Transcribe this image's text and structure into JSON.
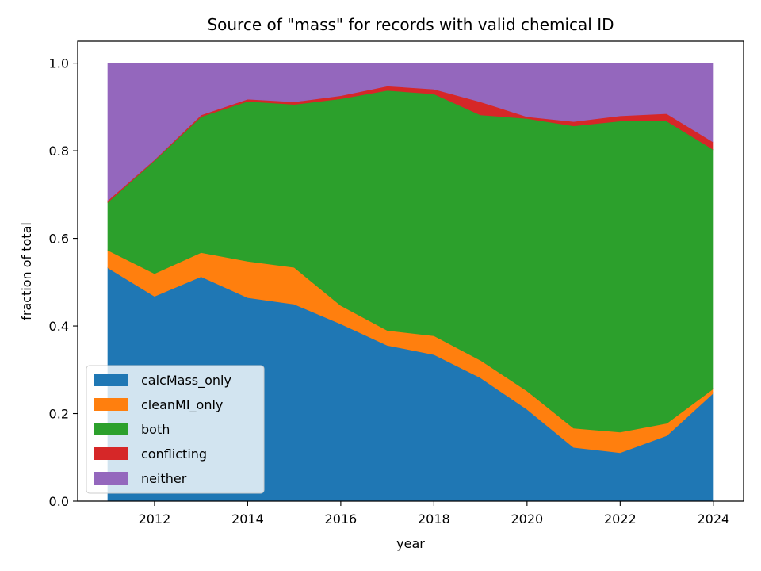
{
  "chart_data": {
    "type": "area",
    "stacked": true,
    "title": "Source of \"mass\" for records with valid chemical ID",
    "xlabel": "year",
    "ylabel": "fraction of total",
    "xlim": [
      2010.35,
      2024.65
    ],
    "ylim": [
      0.0,
      1.05
    ],
    "x": [
      2011,
      2012,
      2013,
      2014,
      2015,
      2016,
      2017,
      2018,
      2019,
      2020,
      2021,
      2022,
      2023,
      2024
    ],
    "x_ticks": [
      2012,
      2014,
      2016,
      2018,
      2020,
      2022,
      2024
    ],
    "y_ticks": [
      0.0,
      0.2,
      0.4,
      0.6,
      0.8,
      1.0
    ],
    "y_tick_labels": [
      "0.0",
      "0.2",
      "0.4",
      "0.6",
      "0.8",
      "1.0"
    ],
    "grid": false,
    "legend_position": "lower-left",
    "series": [
      {
        "name": "calcMass_only",
        "color": "#1f77b4",
        "values": [
          0.533,
          0.468,
          0.513,
          0.465,
          0.45,
          0.405,
          0.356,
          0.335,
          0.282,
          0.21,
          0.123,
          0.111,
          0.15,
          0.247
        ]
      },
      {
        "name": "cleanMI_only",
        "color": "#ff7f0e",
        "values": [
          0.04,
          0.052,
          0.055,
          0.083,
          0.084,
          0.042,
          0.034,
          0.043,
          0.04,
          0.042,
          0.044,
          0.047,
          0.028,
          0.01
        ]
      },
      {
        "name": "both",
        "color": "#2ca02c",
        "values": [
          0.11,
          0.258,
          0.31,
          0.365,
          0.372,
          0.472,
          0.548,
          0.552,
          0.56,
          0.622,
          0.69,
          0.71,
          0.69,
          0.546
        ]
      },
      {
        "name": "conflicting",
        "color": "#d62728",
        "values": [
          0.004,
          0.002,
          0.004,
          0.005,
          0.006,
          0.007,
          0.01,
          0.011,
          0.03,
          0.004,
          0.01,
          0.012,
          0.017,
          0.017
        ]
      },
      {
        "name": "neither",
        "color": "#9467bd",
        "values": [
          0.313,
          0.22,
          0.118,
          0.082,
          0.088,
          0.074,
          0.052,
          0.059,
          0.088,
          0.122,
          0.133,
          0.12,
          0.115,
          0.18
        ]
      }
    ]
  }
}
